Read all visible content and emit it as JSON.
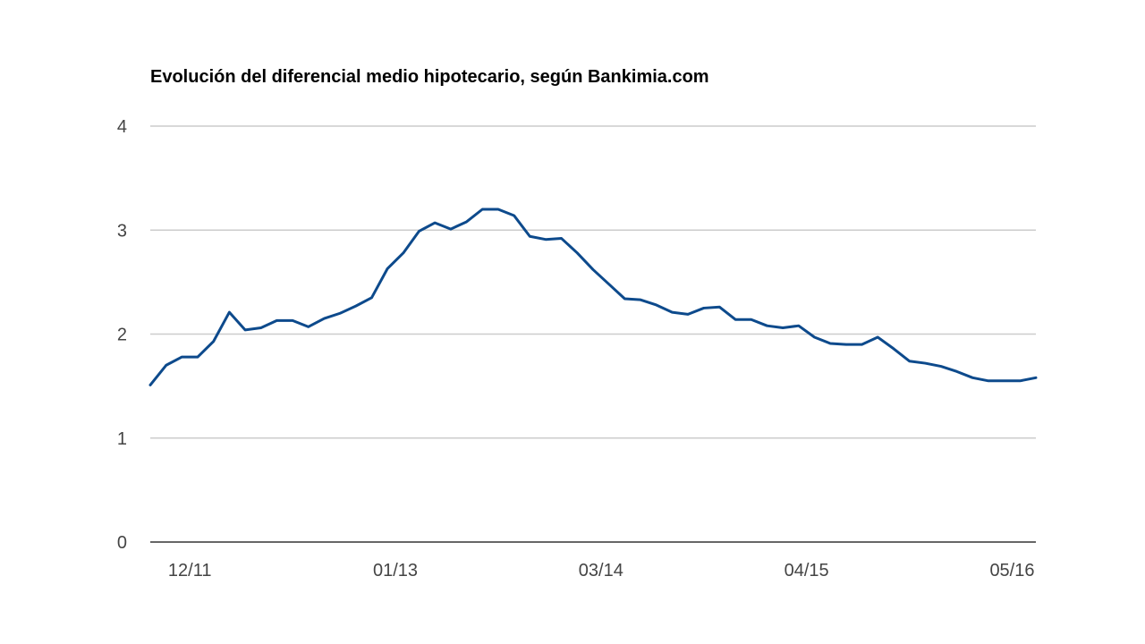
{
  "chart_data": {
    "type": "line",
    "title": "Evolución del diferencial medio hipotecario, según Bankimia.com",
    "xlabel": "",
    "ylabel": "",
    "ylim": [
      0,
      4
    ],
    "yticks": [
      "0",
      "1",
      "2",
      "3",
      "4"
    ],
    "xticks": [
      {
        "label": "12/11",
        "index": 2.5
      },
      {
        "label": "01/13",
        "index": 15.5
      },
      {
        "label": "03/14",
        "index": 28.5
      },
      {
        "label": "04/15",
        "index": 41.5
      },
      {
        "label": "05/16",
        "index": 54.5
      }
    ],
    "grid": true,
    "legend": "none",
    "series": [
      {
        "color": "#0d4a8c",
        "values": [
          1.51,
          1.7,
          1.78,
          1.78,
          1.93,
          2.21,
          2.04,
          2.06,
          2.13,
          2.13,
          2.07,
          2.15,
          2.2,
          2.27,
          2.35,
          2.63,
          2.78,
          2.99,
          3.07,
          3.01,
          3.08,
          3.2,
          3.2,
          3.14,
          2.94,
          2.91,
          2.92,
          2.78,
          2.62,
          2.48,
          2.34,
          2.33,
          2.28,
          2.21,
          2.19,
          2.25,
          2.26,
          2.14,
          2.14,
          2.08,
          2.06,
          2.08,
          1.97,
          1.91,
          1.9,
          1.9,
          1.97,
          1.86,
          1.74,
          1.72,
          1.69,
          1.64,
          1.58,
          1.55,
          1.55,
          1.55,
          1.58
        ]
      }
    ]
  },
  "colors": {
    "line": "#0d4a8c",
    "grid": "#cccccc",
    "axis": "#333333",
    "tick_text": "#444444"
  }
}
